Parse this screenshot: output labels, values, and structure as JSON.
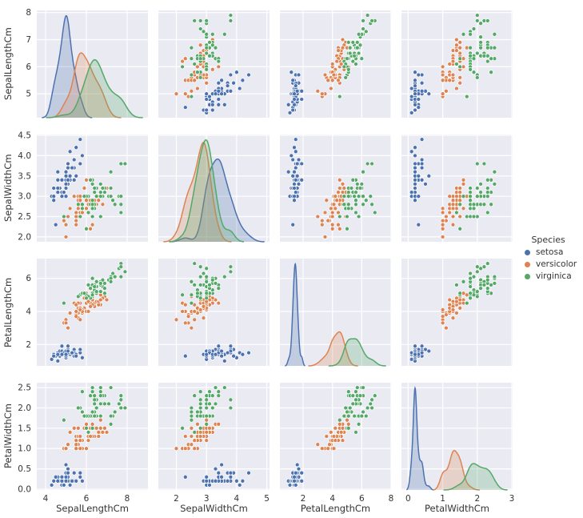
{
  "figure": {
    "background": "#ffffff",
    "axes_background": "#eaeaf2",
    "grid_color": "#ffffff",
    "text_color": "#333333"
  },
  "legend": {
    "title": "Species",
    "items": [
      {
        "label": "setosa",
        "color": "#4c72b0"
      },
      {
        "label": "versicolor",
        "color": "#dd8452"
      },
      {
        "label": "virginica",
        "color": "#55a868"
      }
    ]
  },
  "chart_data": {
    "type": "scatter",
    "subtype": "pairplot",
    "hue": "Species",
    "diagonal": "kde",
    "grid": true,
    "legend_position": "right-center",
    "variables": [
      "SepalLengthCm",
      "SepalWidthCm",
      "PetalLengthCm",
      "PetalWidthCm"
    ],
    "axes": [
      {
        "variable": "SepalLengthCm",
        "x_ticks": [
          4,
          6,
          8
        ],
        "x_tick_labels": [
          "4",
          "6",
          "8"
        ],
        "y_ticks": [
          5,
          6,
          7,
          8
        ],
        "y_tick_labels": [
          "5",
          "6",
          "7",
          "8"
        ]
      },
      {
        "variable": "SepalWidthCm",
        "x_ticks": [
          2,
          3,
          4,
          5
        ],
        "x_tick_labels": [
          "2",
          "3",
          "4",
          "5"
        ],
        "y_ticks": [
          2.0,
          2.5,
          3.0,
          3.5,
          4.0,
          4.5
        ],
        "y_tick_labels": [
          "2.0",
          "2.5",
          "3.0",
          "3.5",
          "4.0",
          "4.5"
        ]
      },
      {
        "variable": "PetalLengthCm",
        "x_ticks": [
          2,
          4,
          6,
          8
        ],
        "x_tick_labels": [
          "2",
          "4",
          "6",
          "8"
        ],
        "y_ticks": [
          2,
          4,
          6
        ],
        "y_tick_labels": [
          "2",
          "4",
          "6"
        ]
      },
      {
        "variable": "PetalWidthCm",
        "x_ticks": [
          0,
          1,
          2,
          3
        ],
        "x_tick_labels": [
          "0",
          "1",
          "2",
          "3"
        ],
        "y_ticks": [
          0.0,
          0.5,
          1.0,
          1.5,
          2.0,
          2.5
        ],
        "y_tick_labels": [
          "0.0",
          "0.5",
          "1.0",
          "1.5",
          "2.0",
          "2.5"
        ]
      }
    ],
    "series": [
      {
        "name": "setosa",
        "color": "#4c72b0",
        "points": [
          [
            5.1,
            3.5,
            1.4,
            0.2
          ],
          [
            4.9,
            3.0,
            1.4,
            0.2
          ],
          [
            4.7,
            3.2,
            1.3,
            0.2
          ],
          [
            4.6,
            3.1,
            1.5,
            0.2
          ],
          [
            5.0,
            3.6,
            1.4,
            0.2
          ],
          [
            5.4,
            3.9,
            1.7,
            0.4
          ],
          [
            4.6,
            3.4,
            1.4,
            0.3
          ],
          [
            5.0,
            3.4,
            1.5,
            0.2
          ],
          [
            4.4,
            2.9,
            1.4,
            0.2
          ],
          [
            4.9,
            3.1,
            1.5,
            0.1
          ],
          [
            5.4,
            3.7,
            1.5,
            0.2
          ],
          [
            4.8,
            3.4,
            1.6,
            0.2
          ],
          [
            4.8,
            3.0,
            1.4,
            0.1
          ],
          [
            4.3,
            3.0,
            1.1,
            0.1
          ],
          [
            5.8,
            4.0,
            1.2,
            0.2
          ],
          [
            5.7,
            4.4,
            1.5,
            0.4
          ],
          [
            5.4,
            3.9,
            1.3,
            0.4
          ],
          [
            5.1,
            3.5,
            1.4,
            0.3
          ],
          [
            5.7,
            3.8,
            1.7,
            0.3
          ],
          [
            5.1,
            3.8,
            1.5,
            0.3
          ],
          [
            5.4,
            3.4,
            1.7,
            0.2
          ],
          [
            5.1,
            3.7,
            1.5,
            0.4
          ],
          [
            4.6,
            3.6,
            1.0,
            0.2
          ],
          [
            5.1,
            3.3,
            1.7,
            0.5
          ],
          [
            4.8,
            3.4,
            1.9,
            0.2
          ],
          [
            5.0,
            3.0,
            1.6,
            0.2
          ],
          [
            5.0,
            3.4,
            1.6,
            0.4
          ],
          [
            5.2,
            3.5,
            1.5,
            0.2
          ],
          [
            5.2,
            3.4,
            1.4,
            0.2
          ],
          [
            4.7,
            3.2,
            1.6,
            0.2
          ],
          [
            4.8,
            3.1,
            1.6,
            0.2
          ],
          [
            5.4,
            3.4,
            1.5,
            0.4
          ],
          [
            5.2,
            4.1,
            1.5,
            0.1
          ],
          [
            5.5,
            4.2,
            1.4,
            0.2
          ],
          [
            4.9,
            3.1,
            1.5,
            0.1
          ],
          [
            5.0,
            3.2,
            1.2,
            0.2
          ],
          [
            5.5,
            3.5,
            1.3,
            0.2
          ],
          [
            4.9,
            3.1,
            1.5,
            0.1
          ],
          [
            4.4,
            3.0,
            1.3,
            0.2
          ],
          [
            5.1,
            3.4,
            1.5,
            0.2
          ],
          [
            5.0,
            3.5,
            1.3,
            0.3
          ],
          [
            4.5,
            2.3,
            1.3,
            0.3
          ],
          [
            4.4,
            3.2,
            1.3,
            0.2
          ],
          [
            5.0,
            3.5,
            1.6,
            0.6
          ],
          [
            5.1,
            3.8,
            1.9,
            0.4
          ],
          [
            4.8,
            3.0,
            1.4,
            0.3
          ],
          [
            5.1,
            3.8,
            1.6,
            0.2
          ],
          [
            4.6,
            3.2,
            1.4,
            0.2
          ],
          [
            5.3,
            3.7,
            1.5,
            0.2
          ],
          [
            5.0,
            3.3,
            1.4,
            0.2
          ]
        ]
      },
      {
        "name": "versicolor",
        "color": "#dd8452",
        "points": [
          [
            7.0,
            3.2,
            4.7,
            1.4
          ],
          [
            6.4,
            3.2,
            4.5,
            1.5
          ],
          [
            6.9,
            3.1,
            4.9,
            1.5
          ],
          [
            5.5,
            2.3,
            4.0,
            1.3
          ],
          [
            6.5,
            2.8,
            4.6,
            1.5
          ],
          [
            5.7,
            2.8,
            4.5,
            1.3
          ],
          [
            6.3,
            3.3,
            4.7,
            1.6
          ],
          [
            4.9,
            2.4,
            3.3,
            1.0
          ],
          [
            6.6,
            2.9,
            4.6,
            1.3
          ],
          [
            5.2,
            2.7,
            3.9,
            1.4
          ],
          [
            5.0,
            2.0,
            3.5,
            1.0
          ],
          [
            5.9,
            3.0,
            4.2,
            1.5
          ],
          [
            6.0,
            2.2,
            4.0,
            1.0
          ],
          [
            6.1,
            2.9,
            4.7,
            1.4
          ],
          [
            5.6,
            2.9,
            3.6,
            1.3
          ],
          [
            6.7,
            3.1,
            4.4,
            1.4
          ],
          [
            5.6,
            3.0,
            4.5,
            1.5
          ],
          [
            5.8,
            2.7,
            4.1,
            1.0
          ],
          [
            6.2,
            2.2,
            4.5,
            1.5
          ],
          [
            5.6,
            2.5,
            3.9,
            1.1
          ],
          [
            5.9,
            3.2,
            4.8,
            1.8
          ],
          [
            6.1,
            2.8,
            4.0,
            1.3
          ],
          [
            6.3,
            2.5,
            4.9,
            1.5
          ],
          [
            6.1,
            2.8,
            4.7,
            1.2
          ],
          [
            6.4,
            2.9,
            4.3,
            1.3
          ],
          [
            6.6,
            3.0,
            4.4,
            1.4
          ],
          [
            6.8,
            2.8,
            4.8,
            1.4
          ],
          [
            6.7,
            3.0,
            5.0,
            1.7
          ],
          [
            6.0,
            2.9,
            4.5,
            1.5
          ],
          [
            5.7,
            2.6,
            3.5,
            1.0
          ],
          [
            5.5,
            2.4,
            3.8,
            1.1
          ],
          [
            5.5,
            2.4,
            3.7,
            1.0
          ],
          [
            5.8,
            2.7,
            3.9,
            1.2
          ],
          [
            6.0,
            2.7,
            5.1,
            1.6
          ],
          [
            5.4,
            3.0,
            4.5,
            1.5
          ],
          [
            6.0,
            3.4,
            4.5,
            1.6
          ],
          [
            6.7,
            3.1,
            4.7,
            1.5
          ],
          [
            6.3,
            2.3,
            4.4,
            1.3
          ],
          [
            5.6,
            3.0,
            4.1,
            1.3
          ],
          [
            5.5,
            2.5,
            4.0,
            1.3
          ],
          [
            5.5,
            2.6,
            4.4,
            1.2
          ],
          [
            6.1,
            3.0,
            4.6,
            1.4
          ],
          [
            5.8,
            2.6,
            4.0,
            1.2
          ],
          [
            5.0,
            2.3,
            3.3,
            1.0
          ],
          [
            5.6,
            2.7,
            4.2,
            1.3
          ],
          [
            5.7,
            3.0,
            4.2,
            1.2
          ],
          [
            5.7,
            2.9,
            4.2,
            1.3
          ],
          [
            6.2,
            2.9,
            4.3,
            1.3
          ],
          [
            5.1,
            2.5,
            3.0,
            1.1
          ],
          [
            5.7,
            2.8,
            4.1,
            1.3
          ]
        ]
      },
      {
        "name": "virginica",
        "color": "#55a868",
        "points": [
          [
            6.3,
            3.3,
            6.0,
            2.5
          ],
          [
            5.8,
            2.7,
            5.1,
            1.9
          ],
          [
            7.1,
            3.0,
            5.9,
            2.1
          ],
          [
            6.3,
            2.9,
            5.6,
            1.8
          ],
          [
            6.5,
            3.0,
            5.8,
            2.2
          ],
          [
            7.6,
            3.0,
            6.6,
            2.1
          ],
          [
            4.9,
            2.5,
            4.5,
            1.7
          ],
          [
            7.3,
            2.9,
            6.3,
            1.8
          ],
          [
            6.7,
            2.5,
            5.8,
            1.8
          ],
          [
            7.2,
            3.6,
            6.1,
            2.5
          ],
          [
            6.5,
            3.2,
            5.1,
            2.0
          ],
          [
            6.4,
            2.7,
            5.3,
            1.9
          ],
          [
            6.8,
            3.0,
            5.5,
            2.1
          ],
          [
            5.7,
            2.5,
            5.0,
            2.0
          ],
          [
            5.8,
            2.8,
            5.1,
            2.4
          ],
          [
            6.4,
            3.2,
            5.3,
            2.3
          ],
          [
            6.5,
            3.0,
            5.5,
            1.8
          ],
          [
            7.7,
            3.8,
            6.7,
            2.2
          ],
          [
            7.7,
            2.6,
            6.9,
            2.3
          ],
          [
            6.0,
            2.2,
            5.0,
            1.5
          ],
          [
            6.9,
            3.2,
            5.7,
            2.3
          ],
          [
            5.6,
            2.8,
            4.9,
            2.0
          ],
          [
            7.7,
            2.8,
            6.7,
            2.0
          ],
          [
            6.3,
            2.7,
            4.9,
            1.8
          ],
          [
            6.7,
            3.3,
            5.7,
            2.1
          ],
          [
            7.2,
            3.2,
            6.0,
            1.8
          ],
          [
            6.2,
            2.8,
            4.8,
            1.8
          ],
          [
            6.1,
            3.0,
            4.9,
            1.8
          ],
          [
            6.4,
            2.8,
            5.6,
            2.1
          ],
          [
            7.2,
            3.0,
            5.8,
            1.6
          ],
          [
            7.4,
            2.8,
            6.1,
            1.9
          ],
          [
            7.9,
            3.8,
            6.4,
            2.0
          ],
          [
            6.4,
            2.8,
            5.6,
            2.2
          ],
          [
            6.3,
            2.8,
            5.1,
            1.5
          ],
          [
            6.1,
            2.6,
            5.6,
            1.4
          ],
          [
            7.7,
            3.0,
            6.1,
            2.3
          ],
          [
            6.3,
            3.4,
            5.6,
            2.4
          ],
          [
            6.4,
            3.1,
            5.5,
            1.8
          ],
          [
            6.0,
            3.0,
            4.8,
            1.8
          ],
          [
            6.9,
            3.1,
            5.4,
            2.1
          ],
          [
            6.7,
            3.1,
            5.6,
            2.4
          ],
          [
            6.9,
            3.1,
            5.1,
            2.3
          ],
          [
            5.8,
            2.7,
            5.1,
            1.9
          ],
          [
            6.8,
            3.2,
            5.9,
            2.3
          ],
          [
            6.7,
            3.3,
            5.7,
            2.5
          ],
          [
            6.7,
            3.0,
            5.2,
            2.3
          ],
          [
            6.3,
            2.5,
            5.0,
            1.9
          ],
          [
            6.5,
            3.0,
            5.2,
            2.0
          ],
          [
            6.2,
            3.4,
            5.4,
            2.3
          ],
          [
            5.9,
            3.0,
            5.1,
            1.8
          ]
        ]
      }
    ]
  }
}
